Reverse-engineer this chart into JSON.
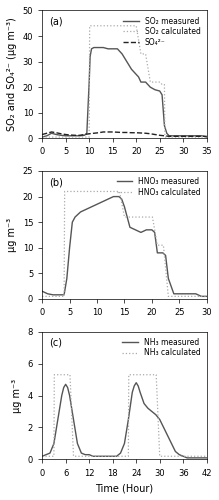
{
  "panel_a": {
    "label": "(a)",
    "ylabel": "SO₂ and SO₄²⁻ (μg m⁻³)",
    "xlim": [
      0,
      35
    ],
    "ylim": [
      0,
      50
    ],
    "xticks": [
      0,
      5,
      10,
      15,
      20,
      25,
      30,
      35
    ],
    "yticks": [
      0,
      10,
      20,
      30,
      40,
      50
    ],
    "so2_measured_x": [
      0,
      1,
      1.5,
      2,
      3,
      4,
      5,
      6,
      7,
      8,
      9,
      9.5,
      10,
      10.2,
      10.5,
      11,
      12,
      13,
      14,
      15,
      16,
      17,
      18,
      19,
      20,
      20.5,
      21,
      22,
      23,
      24,
      25,
      25.5,
      26,
      26.5,
      27,
      28,
      29,
      30,
      31,
      32,
      33,
      34,
      35
    ],
    "so2_measured_y": [
      0.5,
      1.0,
      1.5,
      2.0,
      1.5,
      1.2,
      1.0,
      1.0,
      1.0,
      1.0,
      1.2,
      2.0,
      22,
      32,
      35,
      35.5,
      35.5,
      35.5,
      35,
      35,
      35,
      33,
      30,
      27,
      25,
      24,
      22,
      22,
      20,
      19,
      18.5,
      17,
      5,
      2,
      1,
      1,
      1,
      1,
      1,
      1,
      1,
      1,
      0.5
    ],
    "so2_calculated_x": [
      0,
      1,
      1.5,
      2,
      3,
      4,
      5,
      6,
      7,
      8,
      9,
      9.5,
      10,
      10.1,
      11,
      12,
      13,
      14,
      15,
      16,
      17,
      18,
      19,
      20,
      21,
      22,
      23,
      24,
      25,
      25.1,
      25.5,
      26,
      26.1,
      27,
      28,
      29,
      30,
      31,
      32,
      33,
      34,
      35
    ],
    "so2_calculated_y": [
      0.5,
      0.5,
      0.5,
      0.5,
      0.5,
      0.5,
      0.5,
      0.5,
      0.5,
      0.5,
      0.5,
      0.5,
      0.5,
      44,
      44,
      44,
      44,
      44,
      44,
      44,
      44,
      44,
      44,
      44,
      33,
      33,
      22,
      22,
      22,
      22,
      21,
      21,
      0.5,
      0.5,
      0.5,
      0.5,
      0.5,
      0.5,
      0.5,
      0.5,
      0.5,
      0.5
    ],
    "so4_x": [
      0,
      1,
      2,
      3,
      4,
      5,
      6,
      7,
      8,
      9,
      10,
      11,
      12,
      13,
      14,
      15,
      16,
      17,
      18,
      19,
      20,
      21,
      22,
      23,
      24,
      25,
      26,
      27,
      28,
      29,
      30,
      31,
      32,
      33,
      34,
      35
    ],
    "so4_y": [
      1.5,
      2.0,
      2.5,
      2.2,
      1.8,
      1.5,
      1.3,
      1.2,
      1.2,
      1.5,
      1.8,
      2.0,
      2.2,
      2.5,
      2.5,
      2.5,
      2.4,
      2.3,
      2.3,
      2.2,
      2.2,
      2.1,
      2.0,
      1.8,
      1.5,
      1.2,
      1.0,
      0.8,
      0.8,
      0.8,
      0.8,
      0.8,
      0.8,
      0.8,
      0.8,
      0.8
    ],
    "legend": [
      "SO₂ measured",
      "SO₂ calculated",
      "SO₄²⁻"
    ]
  },
  "panel_b": {
    "label": "(b)",
    "ylabel": "μg m⁻³",
    "xlim": [
      0,
      30
    ],
    "ylim": [
      0,
      25
    ],
    "xticks": [
      0,
      5,
      10,
      15,
      20,
      25,
      30
    ],
    "yticks": [
      0,
      5,
      10,
      15,
      20,
      25
    ],
    "hno3_measured_x": [
      0,
      1,
      2,
      3,
      4,
      4.5,
      5,
      5.5,
      6,
      7,
      8,
      9,
      10,
      11,
      12,
      13,
      14,
      14.5,
      15,
      16,
      17,
      18,
      19,
      20,
      20.5,
      21,
      22,
      22.5,
      23,
      24,
      25,
      26,
      27,
      28,
      29,
      30
    ],
    "hno3_measured_y": [
      1.5,
      1.0,
      0.8,
      0.8,
      0.8,
      4.0,
      10,
      15,
      16,
      17,
      17.5,
      18,
      18.5,
      19,
      19.5,
      20,
      20,
      19.5,
      18,
      14,
      13.5,
      13,
      13.5,
      13.5,
      13,
      9,
      9,
      8.5,
      4,
      1,
      1,
      1,
      1,
      1,
      0.5,
      0.5
    ],
    "hno3_calculated_x": [
      0,
      1,
      2,
      3,
      4,
      4.1,
      5,
      6,
      7,
      8,
      9,
      10,
      11,
      12,
      13,
      14,
      14.1,
      15,
      16,
      17,
      18,
      19,
      20,
      20.1,
      21,
      22,
      22.1,
      23,
      24,
      25,
      26,
      27,
      28,
      29,
      30
    ],
    "hno3_calculated_y": [
      0.5,
      0.5,
      0.5,
      0.5,
      0.5,
      21,
      21,
      21,
      21,
      21,
      21,
      21,
      21,
      21,
      21,
      21,
      21,
      16,
      16,
      16,
      16,
      16,
      16,
      16,
      10.5,
      10.5,
      10.5,
      0.5,
      0.5,
      0.5,
      0.5,
      0.5,
      0.5,
      0.5,
      0.5
    ],
    "legend": [
      "HNO₃ measured",
      "HNO₃ calculated"
    ]
  },
  "panel_c": {
    "label": "(c)",
    "ylabel": "μg m⁻³",
    "xlabel": "Time (Hour)",
    "xlim": [
      0,
      42
    ],
    "ylim": [
      0,
      8
    ],
    "xticks": [
      0,
      6,
      12,
      18,
      24,
      30,
      36,
      42
    ],
    "yticks": [
      0,
      2,
      4,
      6,
      8
    ],
    "nh3_measured_x": [
      0,
      1,
      2,
      3,
      4,
      5,
      5.5,
      6,
      6.5,
      7,
      8,
      9,
      10,
      11,
      12,
      13,
      14,
      15,
      16,
      17,
      18,
      19,
      20,
      21,
      22,
      23,
      23.5,
      24,
      24.5,
      25,
      26,
      27,
      28,
      29,
      30,
      31,
      32,
      33,
      34,
      35,
      36,
      37,
      38,
      39,
      40,
      41,
      42
    ],
    "nh3_measured_y": [
      0.2,
      0.3,
      0.4,
      1.0,
      2.5,
      4.0,
      4.5,
      4.7,
      4.5,
      4.0,
      2.5,
      1.0,
      0.4,
      0.3,
      0.3,
      0.2,
      0.2,
      0.2,
      0.2,
      0.2,
      0.2,
      0.2,
      0.4,
      1.0,
      2.5,
      4.2,
      4.6,
      4.8,
      4.6,
      4.2,
      3.5,
      3.2,
      3.0,
      2.8,
      2.5,
      2.0,
      1.5,
      1.0,
      0.5,
      0.3,
      0.2,
      0.1,
      0.1,
      0.1,
      0.1,
      0.1,
      0.1
    ],
    "nh3_calculated_x": [
      0,
      1,
      2,
      3,
      3.1,
      4,
      5,
      6,
      7,
      7.1,
      8,
      9,
      10,
      11,
      12,
      13,
      14,
      15,
      16,
      17,
      18,
      19,
      20,
      21,
      22,
      22.1,
      23,
      24,
      25,
      26,
      27,
      28,
      29,
      29.1,
      30,
      31,
      32,
      33,
      34,
      35,
      36,
      37,
      38,
      39,
      40,
      41,
      42
    ],
    "nh3_calculated_y": [
      0.2,
      0.2,
      0.2,
      0.2,
      5.3,
      5.3,
      5.3,
      5.3,
      5.3,
      5.3,
      0.2,
      0.2,
      0.2,
      0.2,
      0.2,
      0.2,
      0.2,
      0.2,
      0.2,
      0.2,
      0.2,
      0.2,
      0.2,
      0.2,
      0.2,
      5.3,
      5.3,
      5.3,
      5.3,
      5.3,
      5.3,
      5.3,
      5.3,
      5.3,
      0.2,
      0.2,
      0.2,
      0.2,
      0.2,
      0.2,
      0.2,
      0.2,
      0.2,
      0.2,
      0.2,
      0.2,
      0.2
    ],
    "legend": [
      "NH₃ measured",
      "NH₃ calculated"
    ]
  },
  "line_color_measured": "#555555",
  "line_color_calculated": "#aaaaaa",
  "line_color_so4": "#222222",
  "background_color": "#ffffff",
  "font_size": 7,
  "tick_font_size": 6,
  "legend_font_size": 5.5
}
